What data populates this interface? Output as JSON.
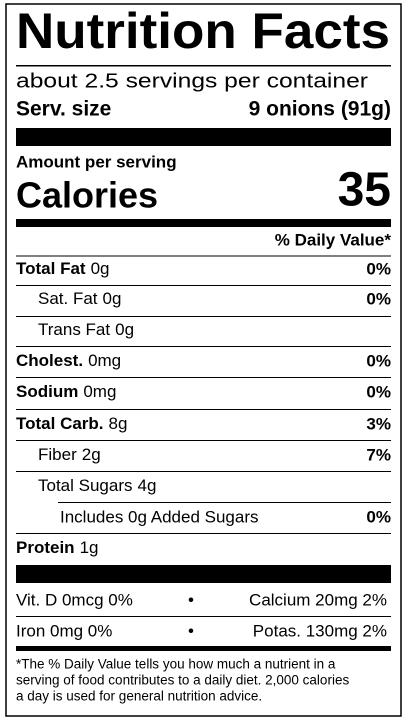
{
  "title": "Nutrition Facts",
  "servings_per_container": "about 2.5 servings per container",
  "serving_size": {
    "label": "Serv. size",
    "value": "9 onions (91g)"
  },
  "amount_per_serving": "Amount per serving",
  "calories": {
    "label": "Calories",
    "value": 35
  },
  "daily_value_header": "% Daily Value*",
  "nutrients": [
    {
      "name": "Total Fat",
      "amount": "0g",
      "daily_value": "0%"
    },
    {
      "name": "Sat. Fat",
      "amount": "0g",
      "daily_value": "0%"
    },
    {
      "name": "Trans Fat",
      "amount": "0g"
    },
    {
      "name": "Cholest.",
      "amount": "0mg",
      "daily_value": "0%"
    },
    {
      "name": "Sodium",
      "amount": "0mg",
      "daily_value": "0%"
    },
    {
      "name": "Total Carb.",
      "amount": "8g",
      "daily_value": "3%"
    },
    {
      "name": "Fiber",
      "amount": "2g",
      "daily_value": "7%"
    },
    {
      "name": "Total Sugars",
      "amount": "4g"
    },
    {
      "name": "Includes 0g Added Sugars",
      "daily_value": "0%"
    },
    {
      "name": "Protein",
      "amount": "1g"
    }
  ],
  "vitamins": [
    [
      "Vit. D 0mcg 0%",
      "Calcium 20mg 2%"
    ],
    [
      "Iron 0mg 0%",
      "Potas. 130mg 2%"
    ]
  ],
  "separator": "•",
  "footnote": [
    "*The % Daily Value tells you how much a nutrient in a",
    "serving of food contributes to a daily diet. 2,000 calories",
    "a day is used for general nutrition advice."
  ]
}
